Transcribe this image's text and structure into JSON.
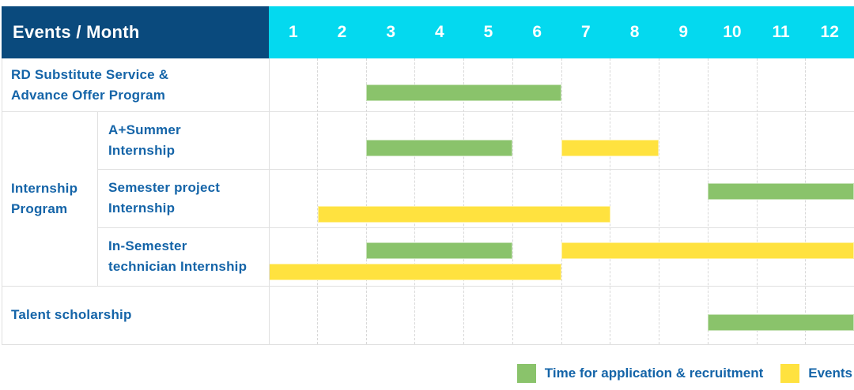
{
  "chart_data": {
    "type": "table",
    "subtype": "gantt-timeline",
    "title": "Events / Month",
    "xlabel": "Month",
    "months": [
      "1",
      "2",
      "3",
      "4",
      "5",
      "6",
      "7",
      "8",
      "9",
      "10",
      "11",
      "12"
    ],
    "month_range": [
      1,
      12
    ],
    "group": {
      "label": "Internship\nProgram"
    },
    "rows": [
      {
        "label": "RD Substitute Service &\nAdvance Offer Program",
        "group": null,
        "bars": [
          {
            "kind": "application",
            "months": [
              3,
              6
            ],
            "line": "center"
          }
        ]
      },
      {
        "label": "A+Summer\nInternship",
        "group": "Internship Program",
        "bars": [
          {
            "kind": "application",
            "months": [
              3,
              5
            ],
            "line": "center"
          },
          {
            "kind": "event",
            "months": [
              7,
              8
            ],
            "line": "center"
          }
        ]
      },
      {
        "label": "Semester project\nInternship",
        "group": "Internship Program",
        "bars": [
          {
            "kind": "application",
            "months": [
              10,
              12
            ],
            "line": "upper"
          },
          {
            "kind": "event",
            "months": [
              2,
              7
            ],
            "line": "lower"
          }
        ]
      },
      {
        "label": "In-Semester\ntechnician Internship",
        "group": "Internship Program",
        "bars": [
          {
            "kind": "application",
            "months": [
              3,
              5
            ],
            "line": "upper"
          },
          {
            "kind": "event",
            "months": [
              7,
              12
            ],
            "line": "upper"
          },
          {
            "kind": "event",
            "months": [
              1,
              6
            ],
            "line": "lower"
          }
        ]
      },
      {
        "label": "Talent scholarship",
        "group": null,
        "bars": [
          {
            "kind": "application",
            "months": [
              10,
              12
            ],
            "line": "center"
          }
        ]
      }
    ],
    "legend": [
      {
        "kind": "application",
        "label": "Time for application & recruitment",
        "color": "#8ac36b"
      },
      {
        "kind": "event",
        "label": "Events",
        "color": "#ffe23f"
      }
    ],
    "colors": {
      "header_bg": "#0a4a7d",
      "months_bg": "#04d9ef",
      "header_text": "#ffffff",
      "label_text": "#1464a8",
      "grid_line": "#e0e0e0",
      "column_dash": "#d8d8d8",
      "application_bar": "#8ac36b",
      "event_bar": "#ffe23f"
    }
  }
}
